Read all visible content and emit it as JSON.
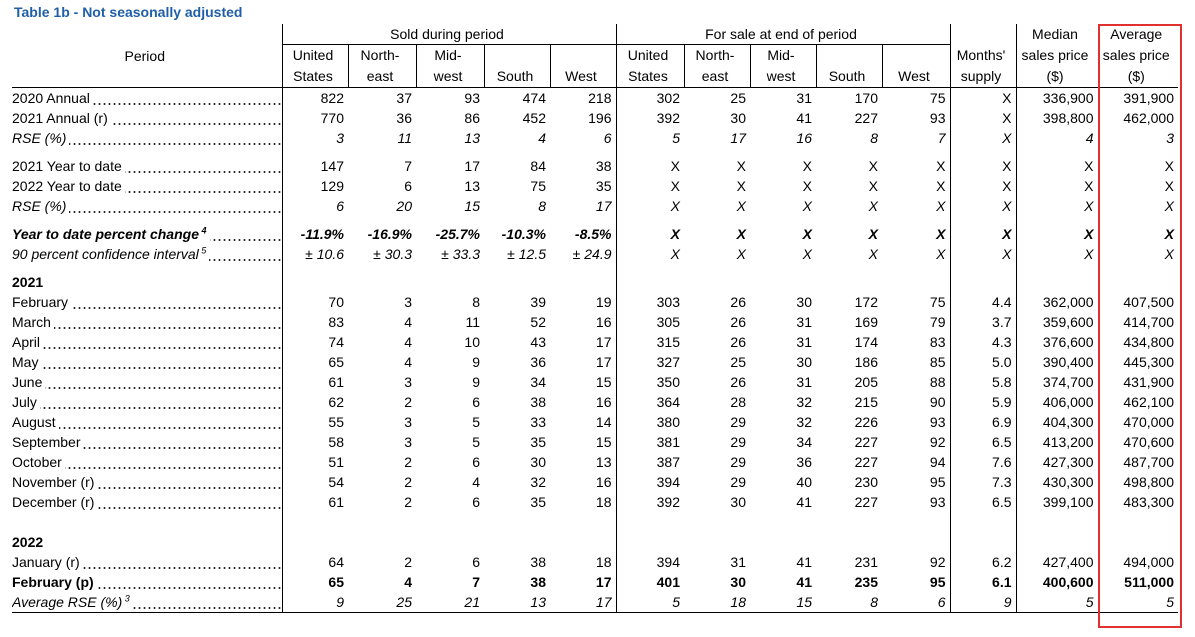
{
  "title": "Table 1b - Not seasonally adjusted",
  "headers": {
    "period": "Period",
    "sold": "Sold during period",
    "forsale": "For sale at end of period",
    "months_l1": "Months'",
    "months_l2": "supply",
    "median_l1": "Median",
    "median_l2": "sales price",
    "median_l3": "($)",
    "avg_l1": "Average",
    "avg_l2": "sales price",
    "avg_l3": "($)",
    "us_l1": "United",
    "us_l2": "States",
    "ne_l1": "North-",
    "ne_l2": "east",
    "mw_l1": "Mid-",
    "mw_l2": "west",
    "south": "South",
    "west": "West"
  },
  "rows": [
    {
      "label": "2020 Annual",
      "dots": true,
      "style": "",
      "v": [
        "822",
        "37",
        "93",
        "474",
        "218",
        "302",
        "25",
        "31",
        "170",
        "75",
        "X",
        "336,900",
        "391,900"
      ]
    },
    {
      "label": "2021 Annual (r)",
      "dots": true,
      "style": "",
      "v": [
        "770",
        "36",
        "86",
        "452",
        "196",
        "392",
        "30",
        "41",
        "227",
        "93",
        "X",
        "398,800",
        "462,000"
      ]
    },
    {
      "label": "RSE (%)",
      "dots": true,
      "style": "it ind",
      "v": [
        "3",
        "11",
        "13",
        "4",
        "6",
        "5",
        "17",
        "16",
        "8",
        "7",
        "X",
        "4",
        "3"
      ]
    },
    {
      "gap": true
    },
    {
      "label": "2021 Year to date",
      "dots": true,
      "style": "",
      "v": [
        "147",
        "7",
        "17",
        "84",
        "38",
        "X",
        "X",
        "X",
        "X",
        "X",
        "X",
        "X",
        "X"
      ]
    },
    {
      "label": "2022 Year to date",
      "dots": true,
      "style": "",
      "v": [
        "129",
        "6",
        "13",
        "75",
        "35",
        "X",
        "X",
        "X",
        "X",
        "X",
        "X",
        "X",
        "X"
      ]
    },
    {
      "label": "RSE (%)",
      "dots": true,
      "style": "it ind",
      "v": [
        "6",
        "20",
        "15",
        "8",
        "17",
        "X",
        "X",
        "X",
        "X",
        "X",
        "X",
        "X",
        "X"
      ]
    },
    {
      "gap": true
    },
    {
      "label": "Year to date percent change",
      "sup": "4",
      "dots": true,
      "style": "it bd",
      "v": [
        "-11.9%",
        "-16.9%",
        "-25.7%",
        "-10.3%",
        "-8.5%",
        "X",
        "X",
        "X",
        "X",
        "X",
        "X",
        "X",
        "X"
      ]
    },
    {
      "label": "90 percent confidence interval",
      "sup": "5",
      "dots": true,
      "style": "it ind",
      "v": [
        "± 10.6",
        "± 30.3",
        "± 33.3",
        "± 12.5",
        "± 24.9",
        "X",
        "X",
        "X",
        "X",
        "X",
        "X",
        "X",
        "X"
      ]
    },
    {
      "gap": true
    },
    {
      "label": "2021",
      "dots": false,
      "style": "bd",
      "v": [
        "",
        "",
        "",
        "",
        "",
        "",
        "",
        "",
        "",
        "",
        "",
        "",
        ""
      ]
    },
    {
      "label": "February",
      "dots": true,
      "style": "",
      "v": [
        "70",
        "3",
        "8",
        "39",
        "19",
        "303",
        "26",
        "30",
        "172",
        "75",
        "4.4",
        "362,000",
        "407,500"
      ]
    },
    {
      "label": "March",
      "dots": true,
      "style": "",
      "v": [
        "83",
        "4",
        "11",
        "52",
        "16",
        "305",
        "26",
        "31",
        "169",
        "79",
        "3.7",
        "359,600",
        "414,700"
      ]
    },
    {
      "label": "April",
      "dots": true,
      "style": "",
      "v": [
        "74",
        "4",
        "10",
        "43",
        "17",
        "315",
        "26",
        "31",
        "174",
        "83",
        "4.3",
        "376,600",
        "434,800"
      ]
    },
    {
      "label": "May",
      "dots": true,
      "style": "",
      "v": [
        "65",
        "4",
        "9",
        "36",
        "17",
        "327",
        "25",
        "30",
        "186",
        "85",
        "5.0",
        "390,400",
        "445,300"
      ]
    },
    {
      "label": "June",
      "dots": true,
      "style": "",
      "v": [
        "61",
        "3",
        "9",
        "34",
        "15",
        "350",
        "26",
        "31",
        "205",
        "88",
        "5.8",
        "374,700",
        "431,900"
      ]
    },
    {
      "label": "July",
      "dots": true,
      "style": "",
      "v": [
        "62",
        "2",
        "6",
        "38",
        "16",
        "364",
        "28",
        "32",
        "215",
        "90",
        "5.9",
        "406,000",
        "462,100"
      ]
    },
    {
      "label": "August",
      "dots": true,
      "style": "",
      "v": [
        "55",
        "3",
        "5",
        "33",
        "14",
        "380",
        "29",
        "32",
        "226",
        "93",
        "6.9",
        "404,300",
        "470,000"
      ]
    },
    {
      "label": "September",
      "dots": true,
      "style": "",
      "v": [
        "58",
        "3",
        "5",
        "35",
        "15",
        "381",
        "29",
        "34",
        "227",
        "92",
        "6.5",
        "413,200",
        "470,600"
      ]
    },
    {
      "label": "October",
      "dots": true,
      "style": "",
      "v": [
        "51",
        "2",
        "6",
        "30",
        "13",
        "387",
        "29",
        "36",
        "227",
        "94",
        "7.6",
        "427,300",
        "487,700"
      ]
    },
    {
      "label": "November (r)",
      "dots": true,
      "style": "",
      "v": [
        "54",
        "2",
        "4",
        "32",
        "16",
        "394",
        "29",
        "40",
        "230",
        "95",
        "7.3",
        "430,300",
        "498,800"
      ]
    },
    {
      "label": "December (r)",
      "dots": true,
      "style": "",
      "v": [
        "61",
        "2",
        "6",
        "35",
        "18",
        "392",
        "30",
        "41",
        "227",
        "93",
        "6.5",
        "399,100",
        "483,300"
      ]
    },
    {
      "gap2": true
    },
    {
      "label": "2022",
      "dots": false,
      "style": "bd",
      "v": [
        "",
        "",
        "",
        "",
        "",
        "",
        "",
        "",
        "",
        "",
        "",
        "",
        ""
      ]
    },
    {
      "label": "January (r)",
      "dots": true,
      "style": "",
      "v": [
        "64",
        "2",
        "6",
        "38",
        "18",
        "394",
        "31",
        "41",
        "231",
        "92",
        "6.2",
        "427,400",
        "494,000"
      ]
    },
    {
      "label": "February (p)",
      "dots": true,
      "style": "bd",
      "v": [
        "65",
        "4",
        "7",
        "38",
        "17",
        "401",
        "30",
        "41",
        "235",
        "95",
        "6.1",
        "400,600",
        "511,000"
      ]
    },
    {
      "label": "Average RSE (%)",
      "sup": "3",
      "dots": true,
      "style": "it ind",
      "last": true,
      "v": [
        "9",
        "25",
        "21",
        "13",
        "17",
        "5",
        "18",
        "15",
        "8",
        "6",
        "9",
        "5",
        "5"
      ]
    }
  ]
}
